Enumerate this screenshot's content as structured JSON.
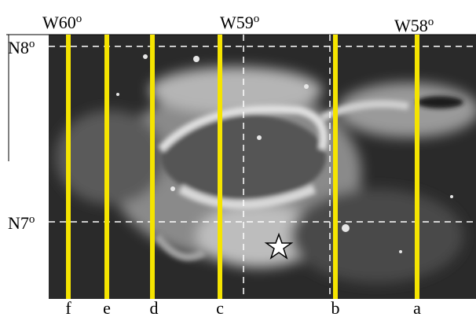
{
  "labels": {
    "top": [
      {
        "text": "W60",
        "sup": "o"
      },
      {
        "text": "W59",
        "sup": "o"
      },
      {
        "text": "W58",
        "sup": "o"
      }
    ],
    "left": [
      {
        "text": "N8",
        "sup": "o"
      },
      {
        "text": "N7",
        "sup": "o"
      }
    ],
    "bottom": [
      "f",
      "e",
      "d",
      "c",
      "b",
      "a"
    ]
  }
}
